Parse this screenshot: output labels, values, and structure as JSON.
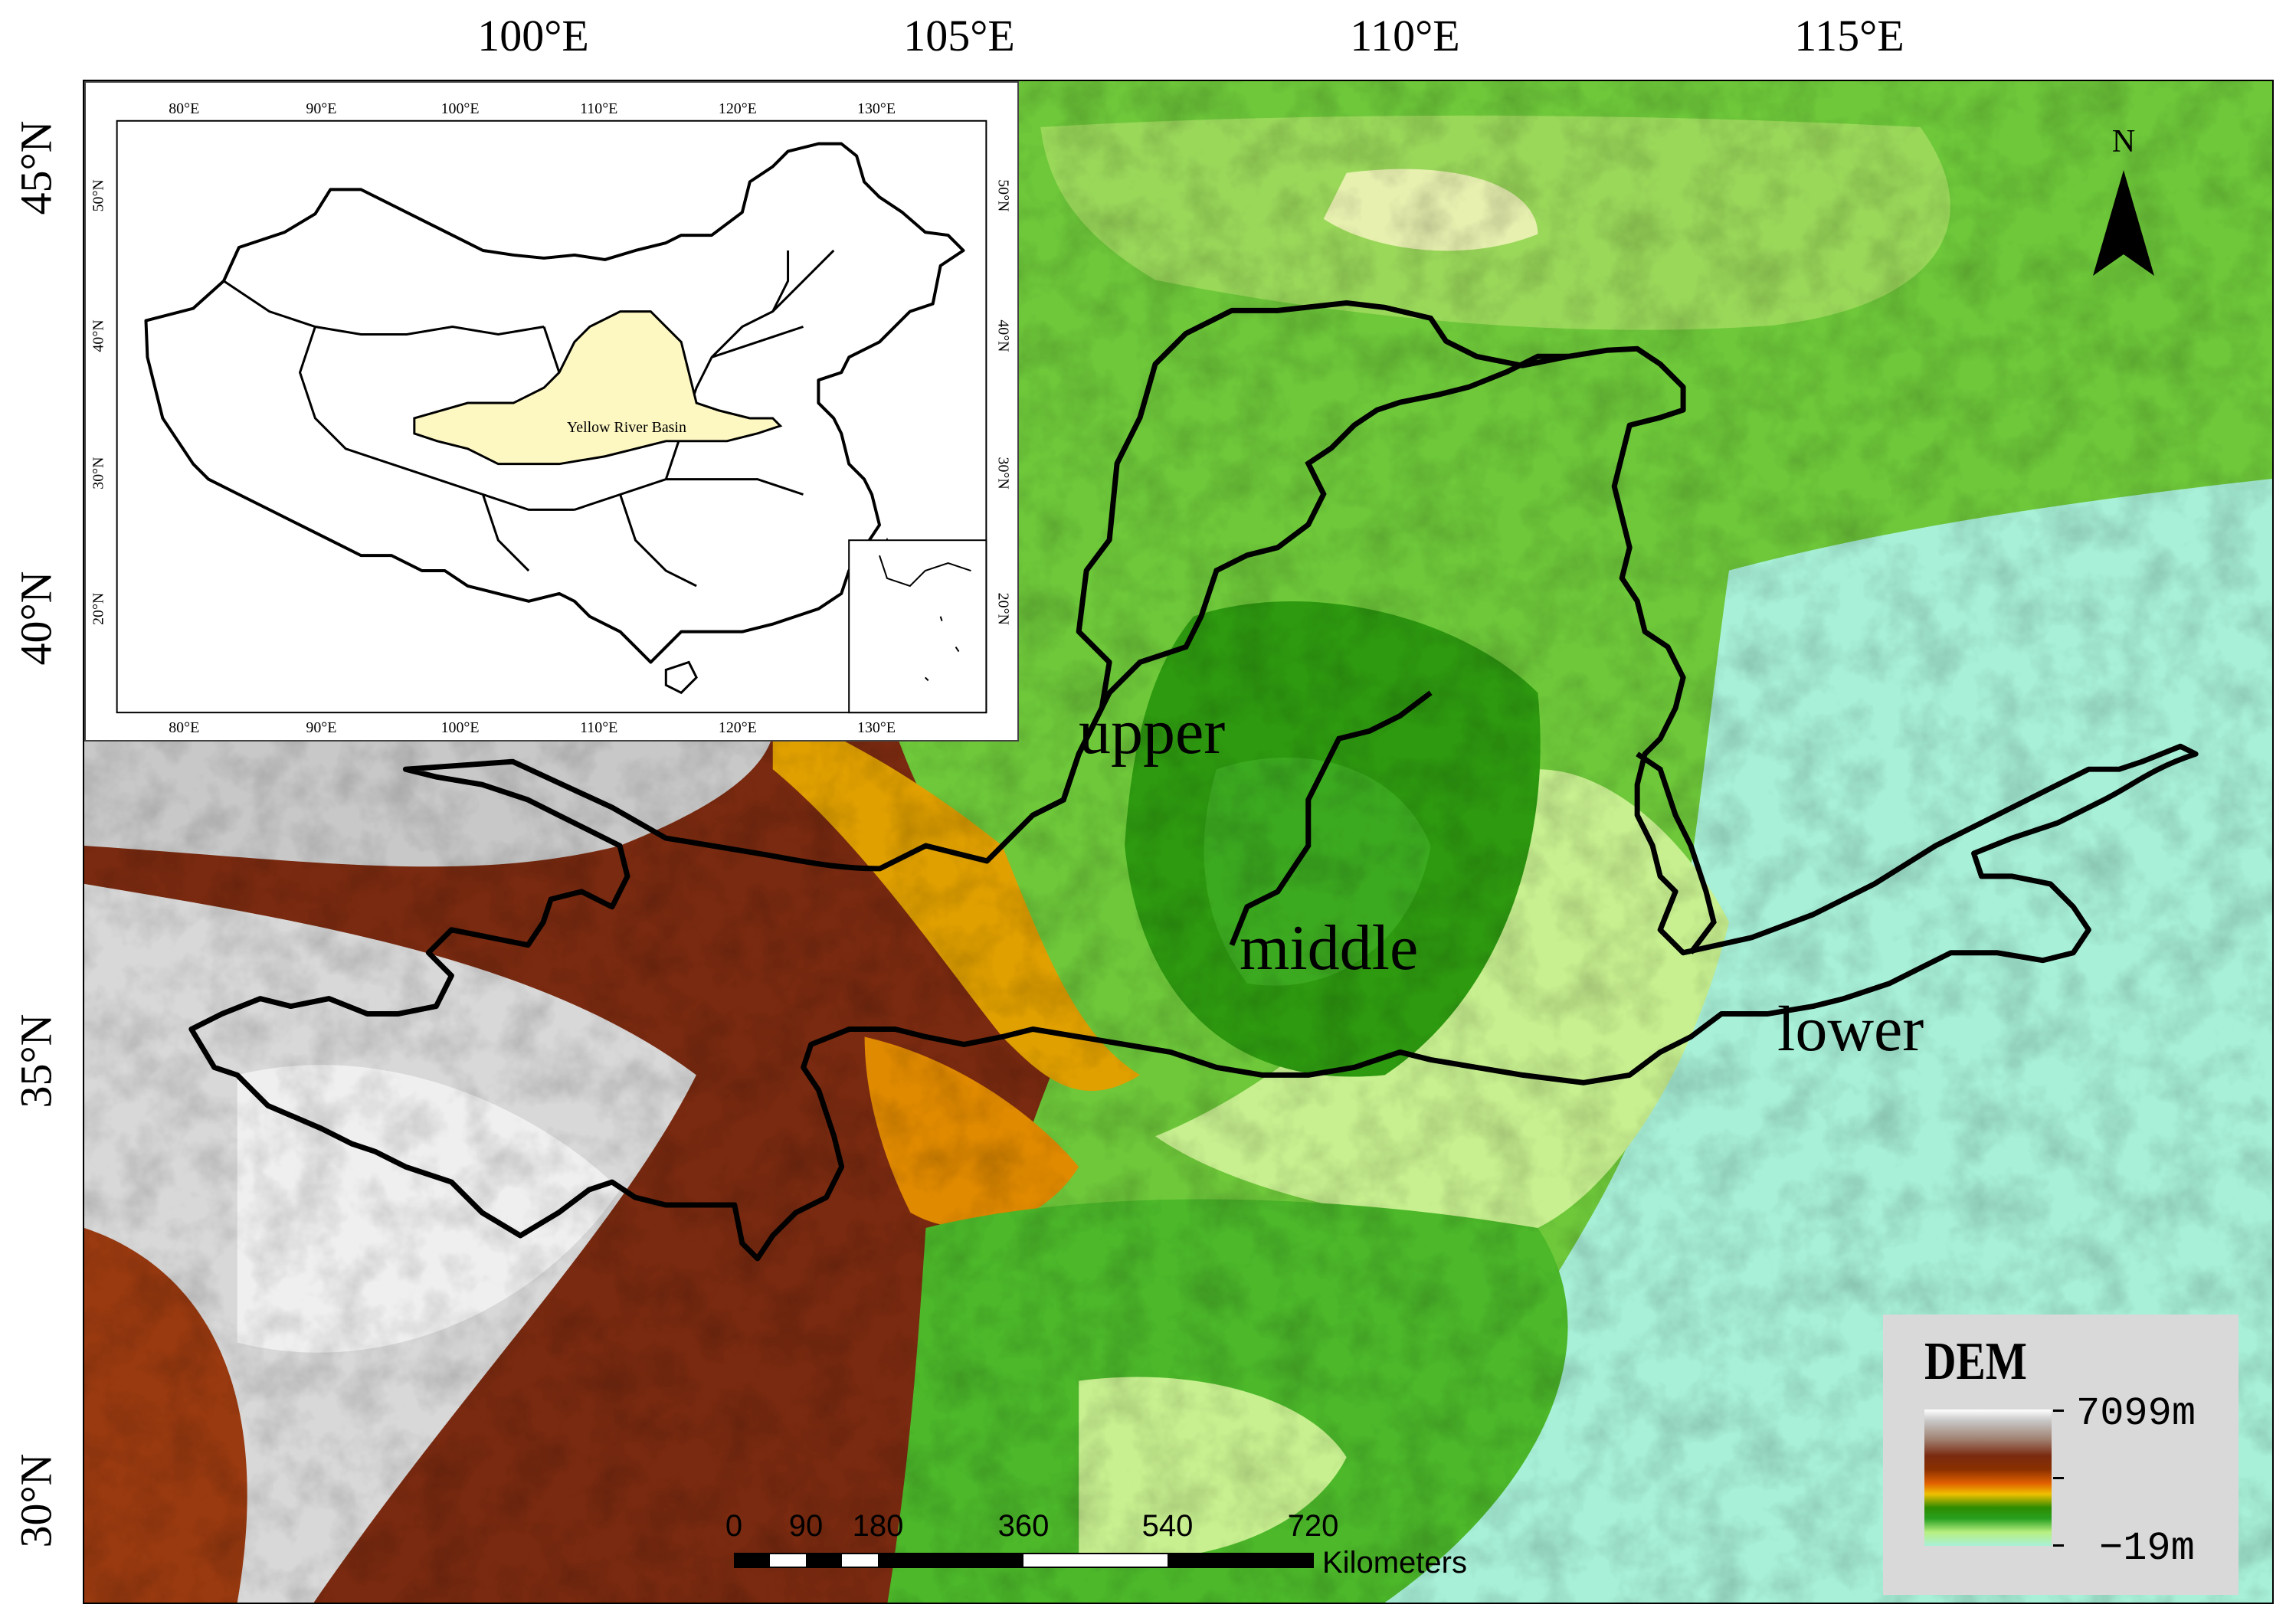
{
  "axes": {
    "longitude_ticks": [
      "100°E",
      "105°E",
      "110°E",
      "115°E"
    ],
    "latitude_ticks": [
      "45°N",
      "40°N",
      "35°N",
      "30°N"
    ]
  },
  "regions": {
    "upper": "upper",
    "middle": "middle",
    "lower": "lower"
  },
  "inset": {
    "label": "Yellow River Basin",
    "lon_ticks": [
      "80°E",
      "90°E",
      "100°E",
      "110°E",
      "120°E",
      "130°E"
    ],
    "lat_ticks": [
      "50°N",
      "40°N",
      "30°N",
      "20°N"
    ],
    "fill_color": "#fdf7c2"
  },
  "north_arrow": {
    "label": "N",
    "icon": "north-arrow-icon"
  },
  "legend": {
    "title": "DEM",
    "max": "7099m",
    "min": "−19m"
  },
  "scale_bar": {
    "ticks": [
      "0",
      "90",
      "180",
      "360",
      "540",
      "720"
    ],
    "units": "Kilometers"
  },
  "colors": {
    "boundary": "#000000",
    "lowland": "#a8f0d8",
    "plain": "#c8f090",
    "forest": "#2e9a10",
    "upland": "#e0a000",
    "highland": "#7a2a10",
    "peak": "#e8e8e8"
  }
}
